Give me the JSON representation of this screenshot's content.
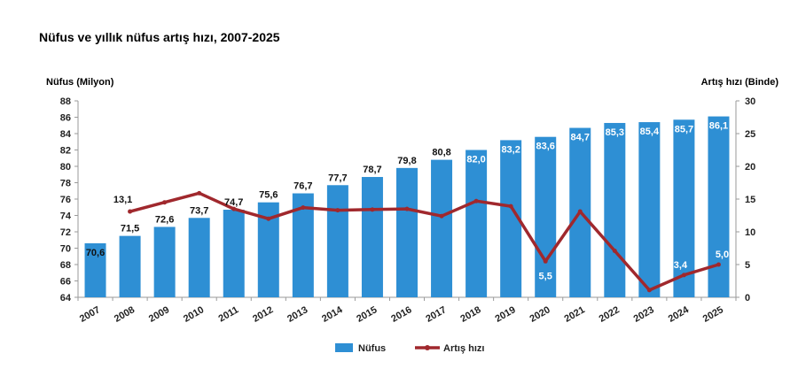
{
  "chart_data": {
    "type": "bar",
    "title": "Nüfus ve yıllık nüfus artış hızı, 2007-2025",
    "categories": [
      "2007",
      "2008",
      "2009",
      "2010",
      "2011",
      "2012",
      "2013",
      "2014",
      "2015",
      "2016",
      "2017",
      "2018",
      "2019",
      "2020",
      "2021",
      "2022",
      "2023",
      "2024",
      "2025"
    ],
    "series": [
      {
        "name": "Nüfus",
        "type": "bar",
        "axis": "left",
        "color": "#2e8fd4",
        "values": [
          70.6,
          71.5,
          72.6,
          73.7,
          74.7,
          75.6,
          76.7,
          77.7,
          78.7,
          79.8,
          80.8,
          82.0,
          83.2,
          83.6,
          84.7,
          85.3,
          85.4,
          85.7,
          86.1
        ],
        "labels": [
          "70,6",
          "71,5",
          "72,6",
          "73,7",
          "74,7",
          "75,6",
          "76,7",
          "77,7",
          "78,7",
          "79,8",
          "80,8",
          "82,0",
          "83,2",
          "83,6",
          "84,7",
          "85,3",
          "85,4",
          "85,7",
          "86,1"
        ]
      },
      {
        "name": "Artış hızı",
        "type": "line",
        "axis": "right",
        "color": "#a0282d",
        "values": [
          null,
          13.1,
          14.5,
          15.9,
          13.5,
          12.0,
          13.7,
          13.3,
          13.4,
          13.5,
          12.4,
          14.7,
          13.9,
          5.5,
          13.1,
          7.1,
          1.1,
          3.4,
          5.0
        ],
        "labels": {
          "2008": "13,1",
          "2020": "5,5",
          "2024": "3,4",
          "2025": "5,0"
        }
      }
    ],
    "ylabel": "Nüfus (Milyon)",
    "ylabel_right": "Artış hızı (Binde)",
    "ylim": [
      64,
      88
    ],
    "yticks": [
      64,
      66,
      68,
      70,
      72,
      74,
      76,
      78,
      80,
      82,
      84,
      86,
      88
    ],
    "ylim_right": [
      0,
      30
    ],
    "yticks_right": [
      0,
      5,
      10,
      15,
      20,
      25,
      30
    ],
    "legend_position": "bottom-center",
    "grid": false
  }
}
